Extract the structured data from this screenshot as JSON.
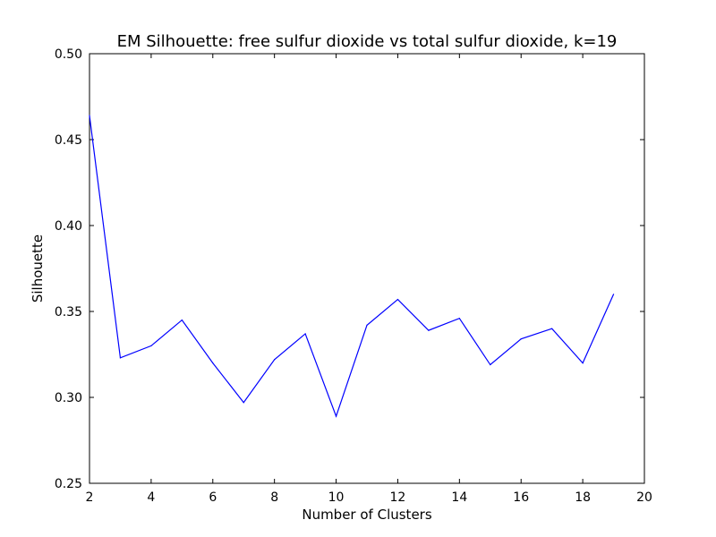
{
  "chart_data": {
    "type": "line",
    "title": "EM Silhouette: free sulfur dioxide vs total sulfur dioxide, k=19",
    "xlabel": "Number of Clusters",
    "ylabel": "Silhouette",
    "xlim": [
      2,
      20
    ],
    "ylim": [
      0.25,
      0.5
    ],
    "xticks": [
      2,
      4,
      6,
      8,
      10,
      12,
      14,
      16,
      18,
      20
    ],
    "xtick_labels": [
      "2",
      "4",
      "6",
      "8",
      "10",
      "12",
      "14",
      "16",
      "18",
      "20"
    ],
    "yticks": [
      0.25,
      0.3,
      0.35,
      0.4,
      0.45,
      0.5
    ],
    "ytick_labels": [
      "0.25",
      "0.30",
      "0.35",
      "0.40",
      "0.45",
      "0.50"
    ],
    "grid": false,
    "line_color": "#0000ff",
    "series": [
      {
        "x": [
          2,
          3,
          4,
          5,
          6,
          7,
          8,
          9,
          10,
          11,
          12,
          13,
          14,
          15,
          16,
          17,
          18,
          19
        ],
        "values": [
          0.464,
          0.323,
          0.33,
          0.345,
          0.32,
          0.297,
          0.322,
          0.337,
          0.289,
          0.342,
          0.357,
          0.339,
          0.346,
          0.319,
          0.334,
          0.34,
          0.32,
          0.36
        ]
      }
    ]
  }
}
